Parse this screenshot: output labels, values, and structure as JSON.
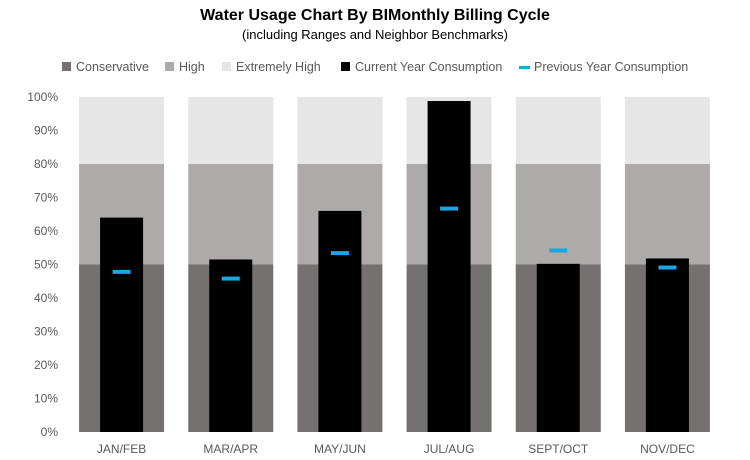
{
  "chart_data": {
    "type": "bar",
    "title": "Water Usage Chart By BIMonthly Billing Cycle",
    "subtitle": "(including Ranges and Neighbor Benchmarks)",
    "categories": [
      "JAN/FEB",
      "MAR/APR",
      "MAY/JUN",
      "JUL/AUG",
      "SEPT/OCT",
      "NOV/DEC"
    ],
    "ylim": [
      0,
      100
    ],
    "y_ticks": [
      0,
      10,
      20,
      30,
      40,
      50,
      60,
      70,
      80,
      90,
      100
    ],
    "y_tick_labels": [
      "0%",
      "10%",
      "20%",
      "30%",
      "40%",
      "50%",
      "60%",
      "70%",
      "80%",
      "90%",
      "100%"
    ],
    "grid": false,
    "legend_position": "top",
    "ranges": [
      {
        "name": "Conservative",
        "from": 0,
        "to": 50,
        "color": "#767171"
      },
      {
        "name": "High",
        "from": 50,
        "to": 80,
        "color": "#aeaaaa"
      },
      {
        "name": "Extremely High",
        "from": 80,
        "to": 100,
        "color": "#e7e6e6"
      }
    ],
    "series": [
      {
        "name": "Current Year Consumption",
        "style": "bar",
        "color": "#000000",
        "values": [
          64,
          51.5,
          66,
          98.8,
          50.2,
          51.8
        ]
      },
      {
        "name": "Previous Year Consumption",
        "style": "marker",
        "color": "#1ba6e3",
        "values": [
          47.8,
          45.8,
          53.4,
          66.7,
          54.2,
          49.1
        ]
      }
    ]
  }
}
